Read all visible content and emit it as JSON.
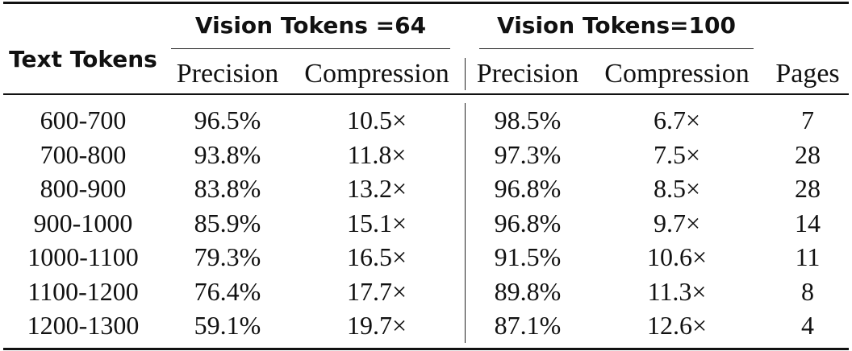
{
  "table": {
    "row_header": "Text Tokens",
    "groups": [
      {
        "title": "Vision Tokens =64",
        "columns": [
          "Precision",
          "Compression"
        ]
      },
      {
        "title": "Vision Tokens=100",
        "columns": [
          "Precision",
          "Compression"
        ]
      }
    ],
    "extra_column": "Pages",
    "rows": [
      {
        "text_tokens": "600-700",
        "p64": "96.5%",
        "c64": "10.5×",
        "p100": "98.5%",
        "c100": "6.7×",
        "pages": "7"
      },
      {
        "text_tokens": "700-800",
        "p64": "93.8%",
        "c64": "11.8×",
        "p100": "97.3%",
        "c100": "7.5×",
        "pages": "28"
      },
      {
        "text_tokens": "800-900",
        "p64": "83.8%",
        "c64": "13.2×",
        "p100": "96.8%",
        "c100": "8.5×",
        "pages": "28"
      },
      {
        "text_tokens": "900-1000",
        "p64": "85.9%",
        "c64": "15.1×",
        "p100": "96.8%",
        "c100": "9.7×",
        "pages": "14"
      },
      {
        "text_tokens": "1000-1100",
        "p64": "79.3%",
        "c64": "16.5×",
        "p100": "91.5%",
        "c100": "10.6×",
        "pages": "11"
      },
      {
        "text_tokens": "1100-1200",
        "p64": "76.4%",
        "c64": "17.7×",
        "p100": "89.8%",
        "c100": "11.3×",
        "pages": "8"
      },
      {
        "text_tokens": "1200-1300",
        "p64": "59.1%",
        "c64": "19.7×",
        "p100": "87.1%",
        "c100": "12.6×",
        "pages": "4"
      }
    ]
  }
}
